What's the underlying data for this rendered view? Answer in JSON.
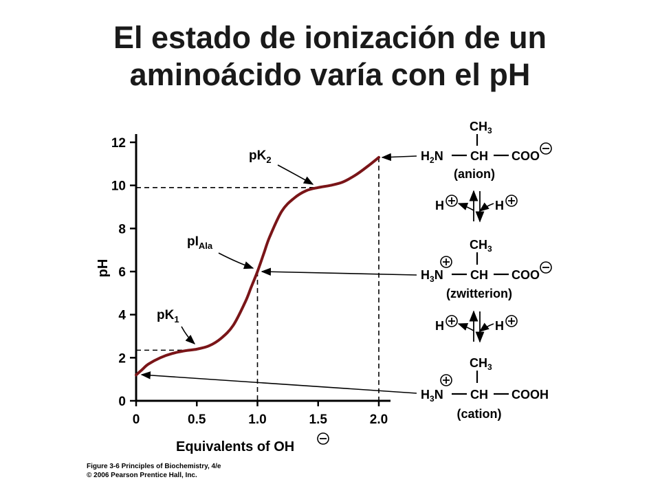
{
  "title": {
    "line1": "El estado de ionización de un",
    "line2": "aminoácido varía con el pH"
  },
  "chart_data": {
    "type": "line",
    "xlabel": "Equivalents of OH",
    "ylabel": "pH",
    "xlim": [
      0,
      2.0
    ],
    "ylim": [
      0,
      12
    ],
    "x_ticks": [
      "0",
      "0.5",
      "1.0",
      "1.5",
      "2.0"
    ],
    "y_ticks": [
      "0",
      "2",
      "4",
      "6",
      "8",
      "10",
      "12"
    ],
    "series": [
      {
        "color": "#7a1518",
        "x": [
          0,
          0.05,
          0.1,
          0.2,
          0.3,
          0.4,
          0.5,
          0.6,
          0.7,
          0.8,
          0.9,
          0.95,
          1.0,
          1.05,
          1.1,
          1.2,
          1.3,
          1.4,
          1.5,
          1.6,
          1.7,
          1.8,
          1.9,
          2.0
        ],
        "y": [
          1.2,
          1.45,
          1.7,
          2.0,
          2.2,
          2.32,
          2.4,
          2.55,
          2.9,
          3.5,
          4.6,
          5.3,
          6.0,
          6.8,
          7.6,
          8.8,
          9.4,
          9.75,
          9.9,
          10.0,
          10.15,
          10.45,
          10.85,
          11.3
        ]
      }
    ],
    "annotations": [
      {
        "label": "pK",
        "sub": "1",
        "x": 0.5,
        "y": 2.35
      },
      {
        "label": "pI",
        "sub": "Ala",
        "x": 1.0,
        "y": 6.0
      },
      {
        "label": "pK",
        "sub": "2",
        "x": 1.5,
        "y": 9.9
      }
    ],
    "grid": false
  },
  "species": {
    "anion": {
      "top": "CH",
      "top_sub": "3",
      "left": "H",
      "left_sub": "2",
      "n": "N",
      "ch": "CH",
      "right": "COO",
      "name": "(anion)"
    },
    "zwitterion": {
      "top": "CH",
      "top_sub": "3",
      "left": "H",
      "left_sub": "3",
      "n": "N",
      "ch": "CH",
      "right": "COO",
      "name": "(zwitterion)"
    },
    "cation": {
      "top": "CH",
      "top_sub": "3",
      "left": "H",
      "left_sub": "3",
      "n": "N",
      "ch": "CH",
      "right": "COOH",
      "name": "(cation)"
    },
    "proton": "H"
  },
  "credit": {
    "line1": "Figure 3-6  Principles of Biochemistry, 4/e",
    "line2": "© 2006 Pearson Prentice Hall, Inc."
  },
  "colors": {
    "curve": "#7a1518",
    "text": "#000000"
  }
}
